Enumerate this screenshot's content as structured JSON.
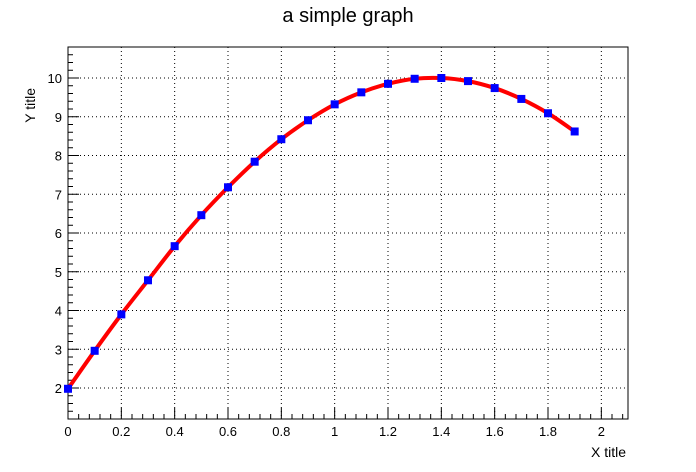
{
  "chart_data": {
    "type": "line",
    "title": "a simple graph",
    "xlabel": "X title",
    "ylabel": "Y title",
    "xlim": [
      0,
      2.1
    ],
    "ylim": [
      1.2,
      10.8
    ],
    "x_ticks": [
      0,
      0.2,
      0.4,
      0.6,
      0.8,
      1,
      1.2,
      1.4,
      1.6,
      1.8,
      2
    ],
    "x_tick_labels": [
      "0",
      "0.2",
      "0.4",
      "0.6",
      "0.8",
      "1",
      "1.2",
      "1.4",
      "1.6",
      "1.8",
      "2"
    ],
    "y_ticks": [
      2,
      3,
      4,
      5,
      6,
      7,
      8,
      9,
      10
    ],
    "y_tick_labels": [
      "2",
      "3",
      "4",
      "5",
      "6",
      "7",
      "8",
      "9",
      "10"
    ],
    "grid": true,
    "series": [
      {
        "x": [
          0,
          0.1,
          0.2,
          0.3,
          0.4,
          0.5,
          0.6,
          0.7,
          0.8,
          0.9,
          1.0,
          1.1,
          1.2,
          1.3,
          1.4,
          1.5,
          1.6,
          1.7,
          1.8,
          1.9
        ],
        "y": [
          1.98,
          2.96,
          3.9,
          4.78,
          5.66,
          6.46,
          7.18,
          7.84,
          8.42,
          8.91,
          9.32,
          9.63,
          9.85,
          9.98,
          10.0,
          9.92,
          9.74,
          9.46,
          9.09,
          8.62
        ],
        "line_color": "#ff0000",
        "marker_color": "#0000ff",
        "marker": "square"
      }
    ]
  }
}
